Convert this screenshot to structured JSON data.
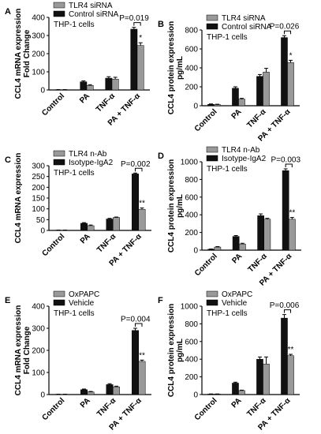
{
  "chart_data": [
    {
      "panel_letter": "A",
      "type": "bar",
      "categories": [
        "Control",
        "PA",
        "TNF-α",
        "PA + TNF-α"
      ],
      "series": [
        {
          "name": "Control siRNA",
          "color": "#111111",
          "values": [
            1,
            45,
            65,
            335
          ],
          "errors": [
            1,
            5,
            8,
            10
          ]
        },
        {
          "name": "TLR4 siRNA",
          "color": "#999999",
          "values": [
            1,
            25,
            60,
            245
          ],
          "errors": [
            1,
            4,
            10,
            15
          ]
        }
      ],
      "legend_order": [
        "TLR4 siRNA",
        "Control siRNA"
      ],
      "cell_label": "THP-1 cells",
      "ylabel_1": "CCL4 mRNA expression",
      "ylabel_2": "Fold Change",
      "ylim": [
        0,
        400
      ],
      "yticks": [
        0,
        100,
        200,
        300,
        400
      ],
      "pvalue": "P=0.019",
      "star": "*"
    },
    {
      "panel_letter": "B",
      "type": "bar",
      "categories": [
        "Control",
        "PA",
        "TNF-α",
        "PA + TNF-α"
      ],
      "series": [
        {
          "name": "Control siRNA",
          "color": "#111111",
          "values": [
            15,
            185,
            310,
            720
          ],
          "errors": [
            4,
            15,
            20,
            20
          ]
        },
        {
          "name": "TLR4 siRNA",
          "color": "#999999",
          "values": [
            12,
            70,
            355,
            455
          ],
          "errors": [
            4,
            8,
            40,
            25
          ]
        }
      ],
      "legend_order": [
        "TLR4 siRNA",
        "Control siRNA"
      ],
      "cell_label": "THP-1 cells",
      "ylabel_1": "CCL4 protein expression",
      "ylabel_2": "pg/mL",
      "ylim": [
        0,
        800
      ],
      "yticks": [
        0,
        200,
        400,
        600,
        800
      ],
      "pvalue": "P=0.026",
      "star": "*"
    },
    {
      "panel_letter": "C",
      "type": "bar",
      "categories": [
        "Control",
        "PA",
        "TNF-α",
        "PA + TNF-α"
      ],
      "series": [
        {
          "name": "Isotype-IgA2",
          "color": "#111111",
          "values": [
            1,
            33,
            53,
            262
          ],
          "errors": [
            0.5,
            3,
            3,
            4
          ]
        },
        {
          "name": "TLR4 n-Ab",
          "color": "#999999",
          "values": [
            1,
            22,
            60,
            98
          ],
          "errors": [
            0.5,
            3,
            2,
            6
          ]
        }
      ],
      "legend_order": [
        "TLR4 n-Ab",
        "Isotype-IgA2"
      ],
      "cell_label": "THP-1 cells",
      "ylabel_1": "CCL4 mRNA expression",
      "ylabel_2": "",
      "ylim": [
        0,
        300
      ],
      "yticks": [
        0,
        50,
        100,
        150,
        200,
        250,
        300
      ],
      "pvalue": "P=0.002",
      "star": "**"
    },
    {
      "panel_letter": "D",
      "type": "bar",
      "categories": [
        "Control",
        "PA",
        "TNF-α",
        "PA + TNF-α"
      ],
      "series": [
        {
          "name": "Isotype-IgA2",
          "color": "#111111",
          "values": [
            10,
            155,
            390,
            900
          ],
          "errors": [
            3,
            10,
            20,
            20
          ]
        },
        {
          "name": "TLR4 n-Ab",
          "color": "#999999",
          "values": [
            35,
            70,
            350,
            350
          ],
          "errors": [
            5,
            8,
            10,
            20
          ]
        }
      ],
      "legend_order": [
        "TLR4 n-Ab",
        "Isotype-IgA2"
      ],
      "cell_label": "THP-1 cells",
      "ylabel_1": "CCL4 protein expression",
      "ylabel_2": "pg/mL",
      "ylim": [
        0,
        1000
      ],
      "yticks": [
        0,
        200,
        400,
        600,
        800,
        1000
      ],
      "pvalue": "P=0.003",
      "star": "**"
    },
    {
      "panel_letter": "E",
      "type": "bar",
      "categories": [
        "Control",
        "PA",
        "TNF-α",
        "PA + TNF-α"
      ],
      "series": [
        {
          "name": "Vehicle",
          "color": "#111111",
          "values": [
            1,
            22,
            45,
            290
          ],
          "errors": [
            0.5,
            3,
            4,
            10
          ]
        },
        {
          "name": "OxPAPC",
          "color": "#999999",
          "values": [
            1,
            12,
            35,
            150
          ],
          "errors": [
            0.5,
            2,
            3,
            6
          ]
        }
      ],
      "legend_order": [
        "OxPAPC",
        "Vehicle"
      ],
      "cell_label": "THP-1 cells",
      "ylabel_1": "CCL4 mRNA expression",
      "ylabel_2": "Fold Change",
      "ylim": [
        0,
        400
      ],
      "yticks": [
        0,
        100,
        200,
        300,
        400
      ],
      "pvalue": "P=0.004",
      "star": "**"
    },
    {
      "panel_letter": "F",
      "type": "bar",
      "categories": [
        "Control",
        "PA",
        "TNF-α",
        "PA + TNF-α"
      ],
      "series": [
        {
          "name": "Vehicle",
          "color": "#111111",
          "values": [
            5,
            130,
            400,
            865
          ],
          "errors": [
            2,
            10,
            25,
            40
          ]
        },
        {
          "name": "OxPAPC",
          "color": "#999999",
          "values": [
            5,
            45,
            345,
            440
          ],
          "errors": [
            2,
            5,
            80,
            15
          ]
        }
      ],
      "legend_order": [
        "OxPAPC",
        "Vehicle"
      ],
      "cell_label": "THP-1 cells",
      "ylabel_1": "CCL4 protein expression",
      "ylabel_2": "pg/mL",
      "ylim": [
        0,
        1000
      ],
      "yticks": [
        0,
        200,
        400,
        600,
        800,
        1000
      ],
      "pvalue": "P=0.006",
      "star": "**"
    }
  ]
}
